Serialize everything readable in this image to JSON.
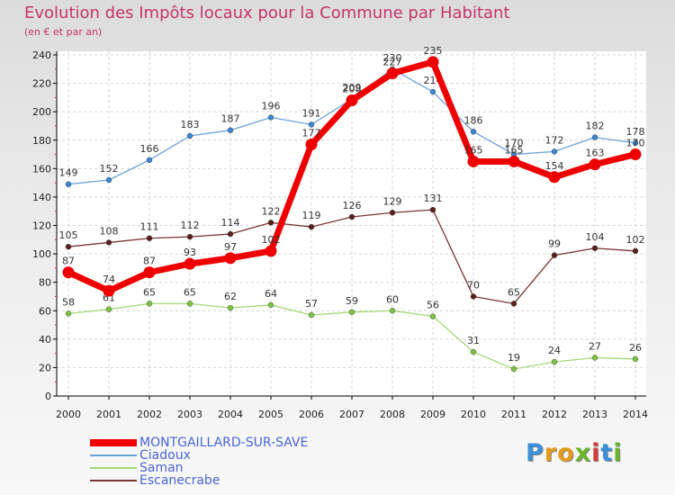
{
  "header": {
    "title": "Evolution des Impôts locaux pour la Commune par Habitant",
    "subtitle": "(en € et par an)"
  },
  "logo": {
    "text": "Proxiti"
  },
  "chart_data": {
    "type": "line",
    "title": "Evolution des Impôts locaux pour la Commune par Habitant",
    "ylabel": "(en € et par an)",
    "xlabel": "",
    "ylim": [
      0,
      240
    ],
    "yticks": [
      0,
      20,
      40,
      60,
      80,
      100,
      120,
      140,
      160,
      180,
      200,
      220,
      240
    ],
    "grid": true,
    "legend_position": "bottom-left",
    "categories": [
      "2000",
      "2001",
      "2002",
      "2003",
      "2004",
      "2005",
      "2006",
      "2007",
      "2008",
      "2009",
      "2010",
      "2011",
      "2012",
      "2013",
      "2014"
    ],
    "series": [
      {
        "name": "Ciadoux",
        "color": "#6fa2d8",
        "marker": "#3a86cf",
        "values": [
          149,
          152,
          166,
          183,
          187,
          196,
          191,
          209,
          230,
          214,
          186,
          170,
          172,
          182,
          178
        ],
        "labels": [
          "149",
          "152",
          "166",
          "183",
          "187",
          "196",
          "191",
          "209",
          "230",
          "214",
          "186",
          "170",
          "172",
          "182",
          "178"
        ]
      },
      {
        "name": "Saman",
        "color": "#a6d87a",
        "marker": "#7dc242",
        "values": [
          58,
          61,
          65,
          65,
          62,
          64,
          57,
          59,
          60,
          56,
          31,
          19,
          24,
          27,
          26
        ],
        "labels": [
          "58",
          "61",
          "65",
          "65",
          "62",
          "64",
          "57",
          "59",
          "60",
          "56",
          "31",
          "19",
          "24",
          "27",
          "26"
        ]
      },
      {
        "name": "Escanecrabe",
        "color": "#7a3535",
        "marker": "#5a1f1f",
        "values": [
          105,
          108,
          111,
          112,
          114,
          122,
          119,
          126,
          129,
          131,
          70,
          65,
          99,
          104,
          102
        ],
        "labels": [
          "105",
          "108",
          "111",
          "112",
          "114",
          "122",
          "119",
          "126",
          "129",
          "131",
          "70",
          "65",
          "99",
          "104",
          "102"
        ]
      },
      {
        "name": "MONTGAILLARD-SUR-SAVE",
        "color": "#ee0000",
        "marker": "#ee0000",
        "values": [
          87,
          74,
          87,
          93,
          97,
          102,
          177,
          208,
          227,
          235,
          165,
          165,
          154,
          163,
          170
        ],
        "labels": [
          "87",
          "74",
          "87",
          "93",
          "97",
          "102",
          "177",
          "208",
          "227",
          "235",
          "165",
          "165",
          "154",
          "163",
          "170"
        ]
      }
    ]
  },
  "legend": [
    {
      "label": "MONTGAILLARD-SUR-SAVE",
      "color": "#ee0000"
    },
    {
      "label": "Ciadoux",
      "color": "#6fa2d8"
    },
    {
      "label": "Saman",
      "color": "#a6d87a"
    },
    {
      "label": "Escanecrabe",
      "color": "#7a3535"
    }
  ]
}
